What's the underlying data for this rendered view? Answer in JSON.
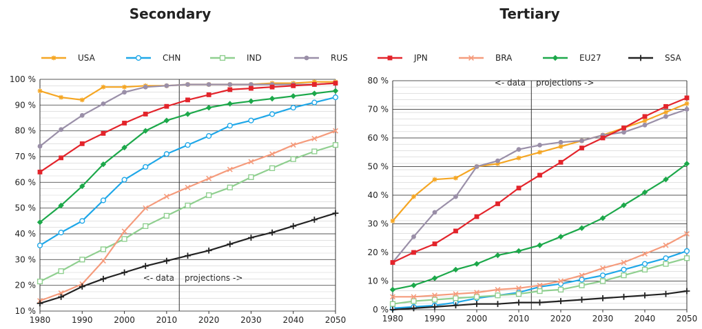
{
  "legend": [
    {
      "name": "USA",
      "color": "#f5a623",
      "marker": "star"
    },
    {
      "name": "CHN",
      "color": "#1ea7e8",
      "marker": "circle-open"
    },
    {
      "name": "IND",
      "color": "#8fcf8f",
      "marker": "square-open"
    },
    {
      "name": "RUS",
      "color": "#9a8fa8",
      "marker": "circle"
    },
    {
      "name": "JPN",
      "color": "#e3242b",
      "marker": "square"
    },
    {
      "name": "BRA",
      "color": "#f59b7c",
      "marker": "x"
    },
    {
      "name": "EU27",
      "color": "#1ca84a",
      "marker": "diamond"
    },
    {
      "name": "SSA",
      "color": "#222222",
      "marker": "plus"
    }
  ],
  "annotations": {
    "data": "<- data",
    "projections": "projections ->"
  },
  "chart_data": [
    {
      "type": "line",
      "title": "Secondary",
      "x": [
        1980,
        1985,
        1990,
        1995,
        2000,
        2005,
        2010,
        2015,
        2020,
        2025,
        2030,
        2035,
        2040,
        2045,
        2050
      ],
      "xlim": [
        1980,
        2050
      ],
      "xticks": [
        "1980",
        "1990",
        "2000",
        "2010",
        "2020",
        "2030",
        "2040",
        "2050"
      ],
      "ylim": [
        10,
        100
      ],
      "yticks": [
        "10 %",
        "20 %",
        "30 %",
        "40 %",
        "50 %",
        "60 %",
        "70 %",
        "80 %",
        "90 %",
        "100 %"
      ],
      "ytick_values": [
        10,
        20,
        30,
        40,
        50,
        60,
        70,
        80,
        90,
        100
      ],
      "grid": true,
      "divider_x": 2013,
      "annotation_position": "bottom",
      "series": [
        {
          "name": "USA",
          "values": [
            95.5,
            93,
            92,
            97,
            97,
            97.5,
            97.5,
            98,
            98,
            98,
            98,
            98.5,
            98.5,
            99,
            99
          ]
        },
        {
          "name": "CHN",
          "values": [
            35.5,
            40.5,
            45,
            53,
            61,
            66,
            71,
            74.5,
            78,
            82,
            84,
            86.5,
            89,
            91,
            93
          ]
        },
        {
          "name": "IND",
          "values": [
            21.5,
            25.5,
            30,
            34,
            38,
            43,
            47,
            51,
            55,
            58,
            62,
            65.5,
            69,
            72,
            74.5
          ]
        },
        {
          "name": "RUS",
          "values": [
            74,
            80.5,
            86,
            90.5,
            95,
            97,
            97.5,
            98,
            98,
            98,
            98,
            98,
            98,
            98,
            98.5
          ]
        },
        {
          "name": "JPN",
          "values": [
            64,
            69.5,
            75,
            79,
            83,
            86.5,
            89.5,
            92,
            94,
            96,
            96.5,
            97,
            97.5,
            98,
            98.5
          ]
        },
        {
          "name": "BRA",
          "values": [
            14,
            17,
            20.5,
            29.5,
            41,
            50,
            54.5,
            58,
            61.5,
            65,
            68,
            71,
            74.5,
            77,
            80
          ]
        },
        {
          "name": "EU27",
          "values": [
            44.5,
            51,
            58.5,
            67,
            73.5,
            80,
            84,
            86.5,
            89,
            90.5,
            91.5,
            92.5,
            93.5,
            94.5,
            95.5
          ]
        },
        {
          "name": "SSA",
          "values": [
            13,
            15.5,
            19.5,
            22.5,
            25,
            27.5,
            29.5,
            31.5,
            33.5,
            36,
            38.5,
            40.5,
            43,
            45.5,
            48
          ]
        }
      ]
    },
    {
      "type": "line",
      "title": "Tertiary",
      "x": [
        1980,
        1985,
        1990,
        1995,
        2000,
        2005,
        2010,
        2015,
        2020,
        2025,
        2030,
        2035,
        2040,
        2045,
        2050
      ],
      "xlim": [
        1980,
        2050
      ],
      "xticks": [
        "1980",
        "1990",
        "2000",
        "2010",
        "2020",
        "2030",
        "2040",
        "2050"
      ],
      "ylim": [
        0,
        80
      ],
      "yticks": [
        "0 %",
        "10 %",
        "20 %",
        "30 %",
        "40 %",
        "50 %",
        "60 %",
        "70 %",
        "80 %"
      ],
      "ytick_values": [
        0,
        10,
        20,
        30,
        40,
        50,
        60,
        70,
        80
      ],
      "grid": true,
      "divider_x": 2013,
      "annotation_position": "top",
      "series": [
        {
          "name": "USA",
          "values": [
            31,
            39.5,
            45.5,
            46,
            50,
            51,
            53,
            55,
            57,
            59,
            61,
            63.5,
            66,
            69,
            72
          ]
        },
        {
          "name": "CHN",
          "values": [
            0.5,
            1,
            1.5,
            2.5,
            4,
            5,
            6,
            8,
            9,
            10.5,
            12,
            14,
            16,
            18,
            20.5
          ]
        },
        {
          "name": "IND",
          "values": [
            2,
            3,
            3.5,
            4,
            4.5,
            5,
            5.5,
            6.5,
            7,
            8.5,
            10,
            12,
            14,
            16,
            18
          ]
        },
        {
          "name": "RUS",
          "values": [
            16.5,
            25.5,
            34,
            39.5,
            50,
            52,
            56,
            57.5,
            58.5,
            59,
            61,
            62,
            64.5,
            67.5,
            70
          ]
        },
        {
          "name": "JPN",
          "values": [
            16.5,
            20,
            23,
            27.5,
            32.5,
            37,
            42.5,
            47,
            51.5,
            56.5,
            60,
            63.5,
            67.5,
            71,
            74
          ]
        },
        {
          "name": "BRA",
          "values": [
            4.5,
            4.5,
            5,
            5.5,
            6,
            7,
            7.5,
            8.5,
            10,
            12,
            14.5,
            16.5,
            19.5,
            22.5,
            26.5
          ]
        },
        {
          "name": "EU27",
          "values": [
            7,
            8.5,
            11,
            14,
            16,
            19,
            20.5,
            22.5,
            25.5,
            28.5,
            32,
            36.5,
            41,
            45.5,
            51
          ]
        },
        {
          "name": "SSA",
          "values": [
            0,
            0.5,
            1,
            1.5,
            2,
            2,
            2.5,
            2.5,
            3,
            3.5,
            4,
            4.5,
            5,
            5.5,
            6.5
          ]
        }
      ]
    }
  ]
}
